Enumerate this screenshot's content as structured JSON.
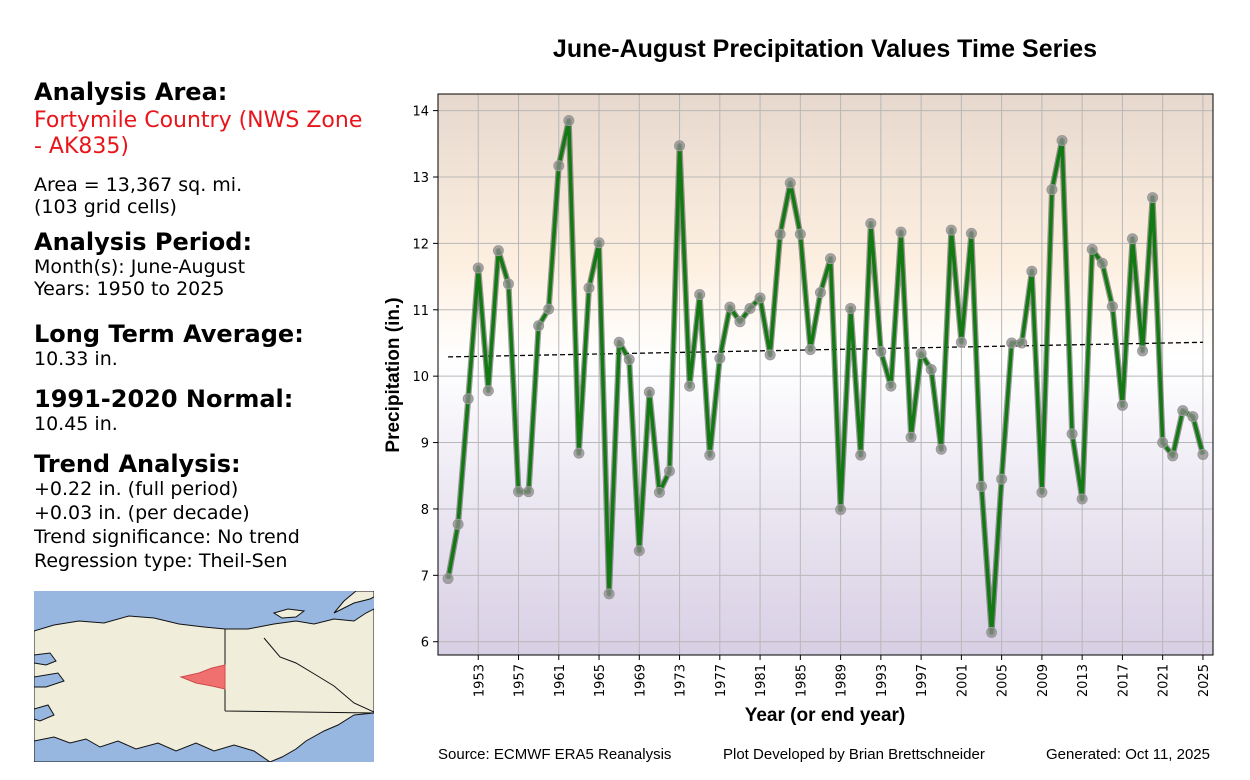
{
  "left_panel": {
    "area_heading": "Analysis Area:",
    "area_name": "Fortymile Country (NWS Zone - AK835)",
    "area_size": "Area = 13,367 sq. mi.",
    "grid_cells": "(103 grid cells)",
    "period_heading": "Analysis Period:",
    "months": "Month(s): June-August",
    "years": "Years: 1950 to 2025",
    "lta_heading": "Long Term Average:",
    "lta_value": "10.33 in.",
    "normal_heading": "1991-2020 Normal:",
    "normal_value": "10.45 in.",
    "trend_heading": "Trend Analysis:",
    "trend_full": "+0.22 in. (full period)",
    "trend_decade": "+0.03 in. (per decade)",
    "trend_sig": "Trend significance: No trend",
    "regression": "Regression type: Theil-Sen"
  },
  "footer": {
    "source": "Source: ECMWF ERA5 Reanalysis",
    "developer": "Plot Developed by Brian Brettschneider",
    "generated": "Generated: Oct 11, 2025"
  },
  "colors": {
    "line": "#137a13",
    "marker": "#8c8c8c",
    "trend": "#000000",
    "region": "#f07070",
    "ocean": "#97b6e0",
    "land": "#f0eedb"
  },
  "chart_data": {
    "type": "line",
    "title": "June-August Precipitation Values Time Series",
    "xlabel": "Year (or end year)",
    "ylabel": "Precipitation (in.)",
    "xlim": [
      1949,
      2026
    ],
    "ylim": [
      5.8,
      14.25
    ],
    "xticks": [
      1953,
      1957,
      1961,
      1965,
      1969,
      1973,
      1977,
      1981,
      1985,
      1989,
      1993,
      1997,
      2001,
      2005,
      2009,
      2013,
      2017,
      2021,
      2025
    ],
    "yticks": [
      6,
      7,
      8,
      9,
      10,
      11,
      12,
      13,
      14
    ],
    "grid": true,
    "x": [
      1950,
      1951,
      1952,
      1953,
      1954,
      1955,
      1956,
      1957,
      1958,
      1959,
      1960,
      1961,
      1962,
      1963,
      1964,
      1965,
      1966,
      1967,
      1968,
      1969,
      1970,
      1971,
      1972,
      1973,
      1974,
      1975,
      1976,
      1977,
      1978,
      1979,
      1980,
      1981,
      1982,
      1983,
      1984,
      1985,
      1986,
      1987,
      1988,
      1989,
      1990,
      1991,
      1992,
      1993,
      1994,
      1995,
      1996,
      1997,
      1998,
      1999,
      2000,
      2001,
      2002,
      2003,
      2004,
      2005,
      2006,
      2007,
      2008,
      2009,
      2010,
      2011,
      2012,
      2013,
      2014,
      2015,
      2016,
      2017,
      2018,
      2019,
      2020,
      2021,
      2022,
      2023,
      2024,
      2025
    ],
    "series": [
      {
        "name": "Precipitation",
        "values": [
          6.95,
          7.77,
          9.66,
          11.63,
          9.78,
          11.89,
          11.39,
          8.26,
          8.26,
          10.76,
          11.01,
          13.17,
          13.85,
          8.84,
          11.33,
          12.01,
          6.72,
          10.51,
          10.25,
          7.37,
          9.76,
          8.25,
          8.57,
          13.47,
          9.85,
          11.23,
          8.81,
          10.27,
          11.04,
          10.82,
          11.02,
          11.18,
          10.32,
          12.14,
          12.91,
          12.14,
          10.4,
          11.26,
          11.77,
          7.99,
          11.02,
          8.81,
          12.3,
          10.37,
          9.85,
          12.17,
          9.08,
          10.34,
          10.1,
          8.9,
          12.2,
          10.51,
          12.15,
          8.34,
          6.14,
          8.45,
          10.5,
          10.5,
          11.58,
          8.25,
          12.81,
          13.55,
          9.13,
          8.15,
          11.91,
          11.7,
          11.05,
          9.56,
          12.07,
          10.38,
          12.69,
          9.0,
          8.8,
          9.48,
          9.39,
          8.82
        ]
      },
      {
        "name": "Trend (Theil-Sen)",
        "values": [
          10.29,
          10.51
        ],
        "x": [
          1950,
          2025
        ]
      }
    ]
  }
}
